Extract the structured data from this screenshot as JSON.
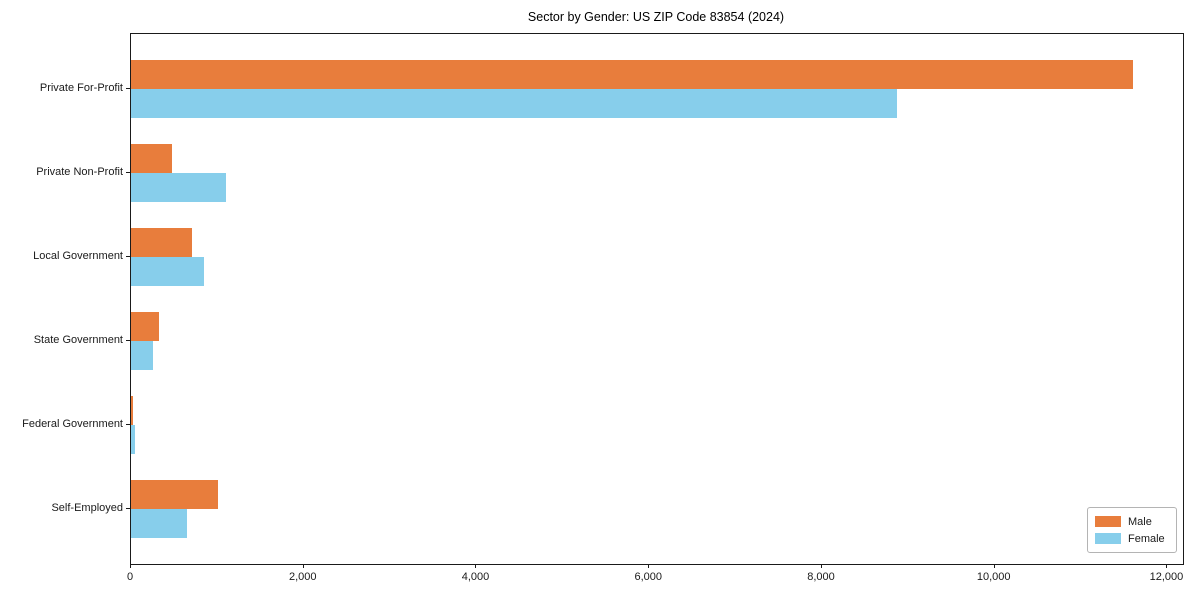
{
  "chart_data": {
    "type": "bar",
    "orientation": "horizontal",
    "title": "Sector by Gender: US ZIP Code 83854 (2024)",
    "categories": [
      "Private For-Profit",
      "Private Non-Profit",
      "Local Government",
      "State Government",
      "Federal Government",
      "Self-Employed"
    ],
    "series": [
      {
        "name": "Male",
        "color": "#e87d3c",
        "values": [
          11600,
          480,
          710,
          320,
          20,
          1010
        ]
      },
      {
        "name": "Female",
        "color": "#87ceeb",
        "values": [
          8870,
          1100,
          840,
          260,
          50,
          650
        ]
      }
    ],
    "xlabel": "",
    "ylabel": "",
    "xlim": [
      0,
      12180
    ],
    "xticks": [
      0,
      2000,
      4000,
      6000,
      8000,
      10000,
      12000
    ],
    "xtick_labels": [
      "0",
      "2,000",
      "4,000",
      "6,000",
      "8,000",
      "10,000",
      "12,000"
    ],
    "grid": false,
    "legend_position": "lower right",
    "background_color": "#ffffff",
    "spine_color": "#1a1a1a"
  }
}
